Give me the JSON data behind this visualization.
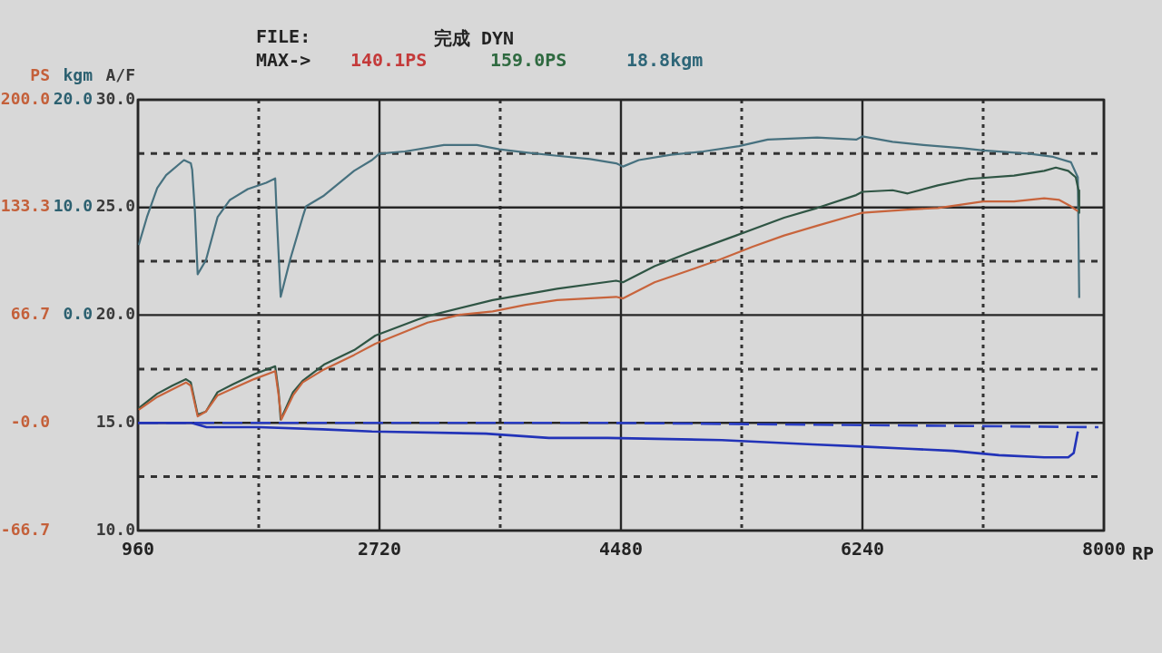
{
  "chart_data": {
    "type": "line",
    "annotations": [
      "FILE:",
      "完成 DYN",
      "MAX->",
      "140.1PS",
      "159.0PS",
      "18.8kgm"
    ],
    "xlabel": "RP",
    "ylabel": "PS",
    "y2label": "kgm",
    "y3label": "A/F",
    "xlim": [
      960,
      8000
    ],
    "xticks": [
      960,
      {
        "value": 1840,
        "label": null
      },
      2720,
      {
        "value": 3600,
        "label": null
      },
      4480,
      {
        "value": 5360,
        "label": null
      },
      6240,
      {
        "value": 7120,
        "label": null
      },
      8000
    ],
    "ylim": [
      -66.7,
      200
    ],
    "yticks": [
      -66.7,
      {
        "value": -33.3,
        "label": null
      },
      {
        "value": 0,
        "label": "-0.0"
      },
      {
        "value": 33.3,
        "label": null
      },
      66.7,
      {
        "value": 100,
        "label": null
      },
      133.3,
      {
        "value": 166.7,
        "label": null
      },
      {
        "value": 200,
        "label": "200.0"
      }
    ],
    "y2lim": [
      -20,
      20
    ],
    "y2ticks": [
      {
        "value": 0,
        "label": "0.0"
      },
      {
        "value": 10,
        "label": "10.0"
      },
      {
        "value": 20,
        "label": "20.0"
      }
    ],
    "y3lim": [
      10,
      30
    ],
    "y3ticks": [
      {
        "value": 10,
        "label": "10.0"
      },
      {
        "value": 15,
        "label": "15.0"
      },
      {
        "value": 20,
        "label": "20.0"
      },
      {
        "value": 25,
        "label": "25.0"
      },
      {
        "value": 30,
        "label": "30.0"
      }
    ],
    "grid": true,
    "marker": "none",
    "series": [
      {
        "color": "#c8643c",
        "x": [
          965,
          1100,
          1310,
          1345,
          1395,
          1455,
          1540,
          1805,
          1960,
          1985,
          2005,
          2090,
          2160,
          2315,
          2535,
          2690,
          3070,
          3310,
          3545,
          3785,
          4015,
          4445,
          4495,
          4725,
          4965,
          5200,
          5440,
          5670,
          5910,
          6195,
          6240,
          6570,
          6790,
          7120,
          7345,
          7565,
          7675,
          7760,
          7810
        ],
        "values": [
          8,
          16,
          25,
          23,
          4,
          7,
          17,
          27,
          32,
          17,
          2,
          17,
          25,
          33,
          42,
          49,
          62,
          67,
          69,
          73,
          76,
          78,
          77,
          87,
          94,
          101,
          109,
          116,
          122,
          129,
          130,
          132,
          133,
          137,
          137,
          139,
          138,
          134,
          131
        ]
      },
      {
        "color": "#2f5544",
        "x": [
          965,
          1100,
          1210,
          1310,
          1345,
          1395,
          1455,
          1540,
          1655,
          1805,
          1960,
          1985,
          2000,
          2090,
          2160,
          2315,
          2535,
          2690,
          3000,
          3070,
          3545,
          4015,
          4445,
          4495,
          4725,
          4965,
          5320,
          5670,
          5910,
          6195,
          6240,
          6460,
          6570,
          6790,
          7015,
          7345,
          7565,
          7650,
          7740,
          7795,
          7815,
          7820
        ],
        "values": [
          9,
          18,
          23,
          27,
          25,
          5,
          7,
          19,
          24,
          30,
          35,
          19,
          2,
          19,
          26,
          36,
          45,
          54,
          64,
          66,
          76,
          83,
          88,
          87,
          97,
          105,
          116,
          127,
          133,
          141,
          143,
          144,
          142,
          147,
          151,
          153,
          156,
          158,
          156,
          152,
          144,
          130
        ]
      },
      {
        "color": "#47717f",
        "axis": "y2",
        "x": [
          965,
          1025,
          1100,
          1165,
          1295,
          1345,
          1355,
          1375,
          1395,
          1455,
          1540,
          1630,
          1760,
          1895,
          1960,
          1970,
          2000,
          2070,
          2160,
          2185,
          2315,
          2535,
          2665,
          2720,
          2905,
          3190,
          3430,
          3595,
          3785,
          4015,
          4255,
          4445,
          4495,
          4610,
          4845,
          5080,
          5340,
          5550,
          5910,
          6195,
          6240,
          6460,
          6685,
          6970,
          7120,
          7450,
          7630,
          7760,
          7810,
          7820
        ],
        "values": [
          6.5,
          9.1,
          11.8,
          13.0,
          14.4,
          14.1,
          13.5,
          9.6,
          3.8,
          5.1,
          9.1,
          10.7,
          11.7,
          12.3,
          12.7,
          9.6,
          1.7,
          5.2,
          9.1,
          10.1,
          11.1,
          13.4,
          14.4,
          15.0,
          15.2,
          15.8,
          15.8,
          15.4,
          15.1,
          14.8,
          14.5,
          14.1,
          13.8,
          14.4,
          14.9,
          15.2,
          15.7,
          16.3,
          16.5,
          16.3,
          16.6,
          16.1,
          15.8,
          15.5,
          15.3,
          15.0,
          14.7,
          14.2,
          12.8,
          1.6
        ]
      },
      {
        "color": "#2233b8",
        "axis": "y3",
        "x": [
          960,
          1350,
          1460,
          1840,
          2305,
          2665,
          3495,
          3955,
          4385,
          5215,
          5875,
          6240,
          6570,
          6900,
          7235,
          7565,
          7740,
          7780,
          7810
        ],
        "values": [
          15.0,
          15.0,
          14.8,
          14.8,
          14.7,
          14.6,
          14.5,
          14.3,
          14.3,
          14.2,
          14.0,
          13.9,
          13.8,
          13.7,
          13.5,
          13.4,
          13.4,
          13.6,
          14.6
        ]
      },
      {
        "color": "#2a3ec4",
        "axis": "y3",
        "line_style": "dashed",
        "x": [
          960,
          4385,
          7960
        ],
        "values": [
          15.0,
          15.0,
          14.8
        ]
      }
    ]
  }
}
